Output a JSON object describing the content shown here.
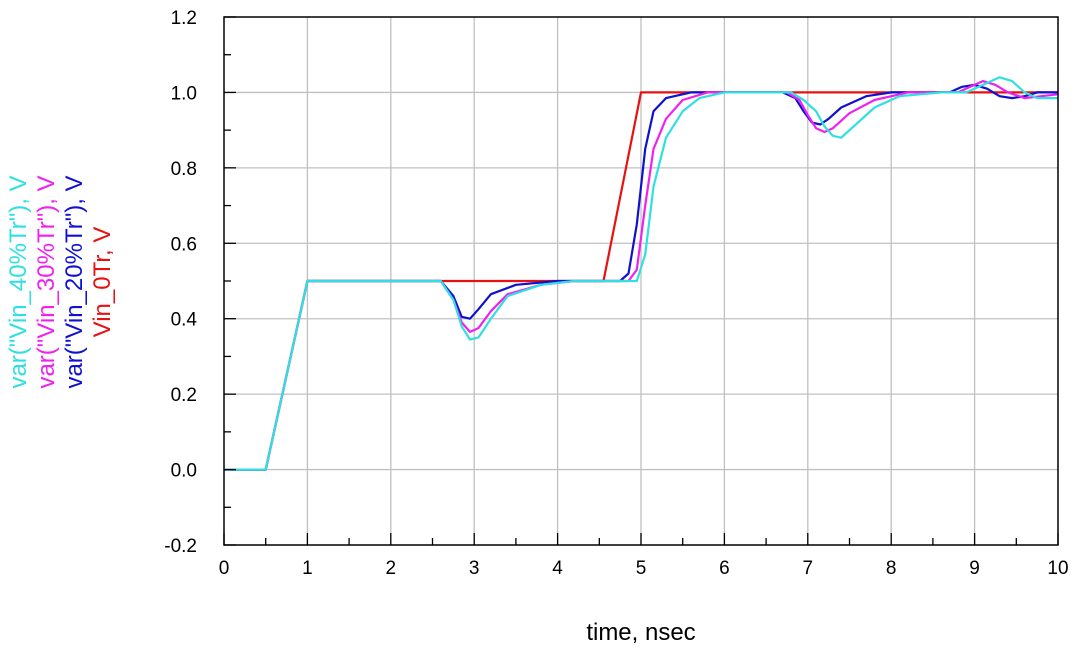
{
  "chart_data": {
    "type": "line",
    "xlabel": "time, nsec",
    "xlim": [
      0,
      10
    ],
    "ylim": [
      -0.2,
      1.2
    ],
    "xticks": [
      "0",
      "1",
      "2",
      "3",
      "4",
      "5",
      "6",
      "7",
      "8",
      "9",
      "10"
    ],
    "yticks": [
      "-0.2",
      "0.0",
      "0.2",
      "0.4",
      "0.6",
      "0.8",
      "1.0",
      "1.2"
    ],
    "grid": true,
    "legend_position": "left-vertical",
    "series": [
      {
        "name": "Vin_0Tr, V",
        "color": "#e81010",
        "points": [
          [
            0,
            0
          ],
          [
            0.5,
            0
          ],
          [
            1.0,
            0.5
          ],
          [
            2.5,
            0.5
          ],
          [
            4.55,
            0.5
          ],
          [
            5.0,
            1.0
          ],
          [
            10,
            1.0
          ]
        ]
      },
      {
        "name": "var(\"Vin_20%Tr\"), V",
        "color": "#1010d0",
        "points": [
          [
            0,
            0
          ],
          [
            0.5,
            0
          ],
          [
            1.0,
            0.5
          ],
          [
            2.6,
            0.5
          ],
          [
            2.75,
            0.46
          ],
          [
            2.85,
            0.405
          ],
          [
            2.95,
            0.4
          ],
          [
            3.05,
            0.425
          ],
          [
            3.2,
            0.465
          ],
          [
            3.5,
            0.49
          ],
          [
            4.0,
            0.5
          ],
          [
            4.75,
            0.5
          ],
          [
            4.85,
            0.52
          ],
          [
            4.95,
            0.65
          ],
          [
            5.05,
            0.85
          ],
          [
            5.15,
            0.95
          ],
          [
            5.3,
            0.985
          ],
          [
            5.6,
            1.0
          ],
          [
            6.7,
            1.0
          ],
          [
            6.85,
            0.985
          ],
          [
            6.95,
            0.95
          ],
          [
            7.05,
            0.92
          ],
          [
            7.15,
            0.915
          ],
          [
            7.25,
            0.93
          ],
          [
            7.4,
            0.96
          ],
          [
            7.7,
            0.99
          ],
          [
            8.0,
            1.0
          ],
          [
            8.7,
            1.0
          ],
          [
            8.85,
            1.015
          ],
          [
            9.0,
            1.02
          ],
          [
            9.15,
            1.01
          ],
          [
            9.3,
            0.99
          ],
          [
            9.45,
            0.985
          ],
          [
            9.6,
            0.99
          ],
          [
            9.75,
            1.0
          ],
          [
            10,
            1.0
          ]
        ]
      },
      {
        "name": "var(\"Vin_30%Tr\"), V",
        "color": "#f020f0",
        "points": [
          [
            0,
            0
          ],
          [
            0.5,
            0
          ],
          [
            1.0,
            0.5
          ],
          [
            2.6,
            0.5
          ],
          [
            2.75,
            0.45
          ],
          [
            2.85,
            0.39
          ],
          [
            2.95,
            0.365
          ],
          [
            3.05,
            0.375
          ],
          [
            3.2,
            0.42
          ],
          [
            3.4,
            0.465
          ],
          [
            3.8,
            0.49
          ],
          [
            4.2,
            0.5
          ],
          [
            4.85,
            0.5
          ],
          [
            4.95,
            0.53
          ],
          [
            5.05,
            0.7
          ],
          [
            5.15,
            0.85
          ],
          [
            5.3,
            0.93
          ],
          [
            5.5,
            0.98
          ],
          [
            5.8,
            1.0
          ],
          [
            6.75,
            1.0
          ],
          [
            6.9,
            0.98
          ],
          [
            7.0,
            0.94
          ],
          [
            7.1,
            0.905
          ],
          [
            7.2,
            0.895
          ],
          [
            7.3,
            0.905
          ],
          [
            7.5,
            0.945
          ],
          [
            7.8,
            0.98
          ],
          [
            8.2,
            1.0
          ],
          [
            8.8,
            1.0
          ],
          [
            8.95,
            1.015
          ],
          [
            9.1,
            1.03
          ],
          [
            9.25,
            1.02
          ],
          [
            9.4,
            1.0
          ],
          [
            9.6,
            0.985
          ],
          [
            9.8,
            0.99
          ],
          [
            10,
            0.995
          ]
        ]
      },
      {
        "name": "var(\"Vin_40%Tr\"), V",
        "color": "#30e0e0",
        "points": [
          [
            0,
            0
          ],
          [
            0.5,
            0
          ],
          [
            1.0,
            0.5
          ],
          [
            2.6,
            0.5
          ],
          [
            2.75,
            0.45
          ],
          [
            2.85,
            0.38
          ],
          [
            2.95,
            0.345
          ],
          [
            3.05,
            0.35
          ],
          [
            3.2,
            0.4
          ],
          [
            3.4,
            0.46
          ],
          [
            3.8,
            0.49
          ],
          [
            4.2,
            0.5
          ],
          [
            4.95,
            0.5
          ],
          [
            5.05,
            0.57
          ],
          [
            5.15,
            0.75
          ],
          [
            5.3,
            0.88
          ],
          [
            5.5,
            0.95
          ],
          [
            5.7,
            0.985
          ],
          [
            6.0,
            1.0
          ],
          [
            6.8,
            1.0
          ],
          [
            6.95,
            0.98
          ],
          [
            7.1,
            0.95
          ],
          [
            7.2,
            0.91
          ],
          [
            7.3,
            0.885
          ],
          [
            7.4,
            0.88
          ],
          [
            7.55,
            0.91
          ],
          [
            7.8,
            0.96
          ],
          [
            8.1,
            0.99
          ],
          [
            8.6,
            1.0
          ],
          [
            8.9,
            1.0
          ],
          [
            9.1,
            1.02
          ],
          [
            9.3,
            1.04
          ],
          [
            9.45,
            1.03
          ],
          [
            9.6,
            1.0
          ],
          [
            9.75,
            0.985
          ],
          [
            10,
            0.985
          ]
        ]
      }
    ]
  }
}
